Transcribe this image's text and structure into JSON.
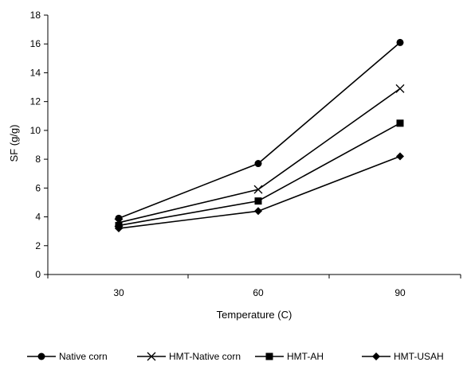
{
  "chart_data": {
    "type": "line",
    "title": "",
    "xlabel": "Temperature (C)",
    "ylabel": "SF (g/g)",
    "categories": [
      "30",
      "60",
      "90"
    ],
    "ylim": [
      0,
      18
    ],
    "yticks": [
      0,
      2,
      4,
      6,
      8,
      10,
      12,
      14,
      16,
      18
    ],
    "grid": false,
    "legend_position": "bottom",
    "series": [
      {
        "name": "Native corn",
        "marker": "circle",
        "values": [
          3.9,
          7.7,
          16.1
        ]
      },
      {
        "name": "HMT-Native corn",
        "marker": "x",
        "values": [
          3.6,
          5.9,
          12.9
        ]
      },
      {
        "name": "HMT-AH",
        "marker": "square",
        "values": [
          3.4,
          5.1,
          10.5
        ]
      },
      {
        "name": "HMT-USAH",
        "marker": "diamond",
        "values": [
          3.2,
          4.4,
          8.2
        ]
      }
    ],
    "line_color": "#000000"
  }
}
